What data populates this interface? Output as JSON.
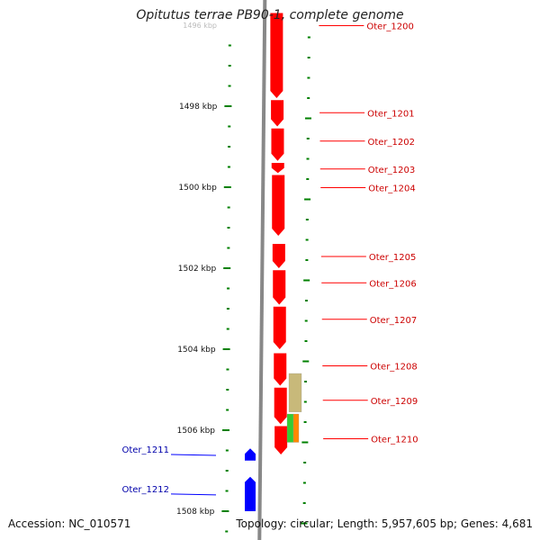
{
  "title": "Opitutus terrae PB90-1, complete genome",
  "accession_text": "Accession: NC_010571",
  "topology_text": "Topology: circular; Length: 5,957,605 bp; Genes: 4,681",
  "colors": {
    "forward_gene": "#ff0000",
    "reverse_gene": "#0000ff",
    "ruler_tick": "#008000",
    "backbone": "#888888",
    "label_forward": "#cc0000",
    "label_reverse": "#0000aa",
    "feature_tan": "#c8b97a",
    "feature_green": "#33cc33",
    "feature_orange": "#ff8800"
  },
  "ruler": {
    "unit": "kbp",
    "labels": [
      {
        "kbp": 1496,
        "text": "1496 kbp"
      },
      {
        "kbp": 1498,
        "text": "1498 kbp"
      },
      {
        "kbp": 1500,
        "text": "1500 kbp"
      },
      {
        "kbp": 1502,
        "text": "1502 kbp"
      },
      {
        "kbp": 1504,
        "text": "1504 kbp"
      },
      {
        "kbp": 1506,
        "text": "1506 kbp"
      },
      {
        "kbp": 1508,
        "text": "1508 kbp"
      }
    ]
  },
  "genes": [
    {
      "name": "Oter_1200",
      "strand": "+",
      "start_kbp": 1495.7,
      "end_kbp": 1497.8
    },
    {
      "name": "Oter_1201",
      "strand": "+",
      "start_kbp": 1497.85,
      "end_kbp": 1498.5
    },
    {
      "name": "Oter_1202",
      "strand": "+",
      "start_kbp": 1498.55,
      "end_kbp": 1499.35
    },
    {
      "name": "Oter_1203",
      "strand": "+",
      "start_kbp": 1499.4,
      "end_kbp": 1499.65
    },
    {
      "name": "Oter_1204",
      "strand": "+",
      "start_kbp": 1499.7,
      "end_kbp": 1501.2
    },
    {
      "name": "Oter_1205",
      "strand": "+",
      "start_kbp": 1501.4,
      "end_kbp": 1502.0
    },
    {
      "name": "Oter_1206",
      "strand": "+",
      "start_kbp": 1502.05,
      "end_kbp": 1502.9
    },
    {
      "name": "Oter_1207",
      "strand": "+",
      "start_kbp": 1502.95,
      "end_kbp": 1504.0
    },
    {
      "name": "Oter_1208",
      "strand": "+",
      "start_kbp": 1504.1,
      "end_kbp": 1504.9
    },
    {
      "name": "Oter_1209",
      "strand": "+",
      "start_kbp": 1504.95,
      "end_kbp": 1505.85
    },
    {
      "name": "Oter_1210",
      "strand": "+",
      "start_kbp": 1505.9,
      "end_kbp": 1506.6
    },
    {
      "name": "Oter_1211",
      "strand": "-",
      "start_kbp": 1506.45,
      "end_kbp": 1506.75
    },
    {
      "name": "Oter_1212",
      "strand": "-",
      "start_kbp": 1507.15,
      "end_kbp": 1508.0
    }
  ],
  "features": [
    {
      "kind": "tan",
      "start_kbp": 1504.6,
      "end_kbp": 1505.55
    },
    {
      "kind": "green",
      "start_kbp": 1505.6,
      "end_kbp": 1506.3
    },
    {
      "kind": "orange",
      "start_kbp": 1505.6,
      "end_kbp": 1506.3
    }
  ]
}
